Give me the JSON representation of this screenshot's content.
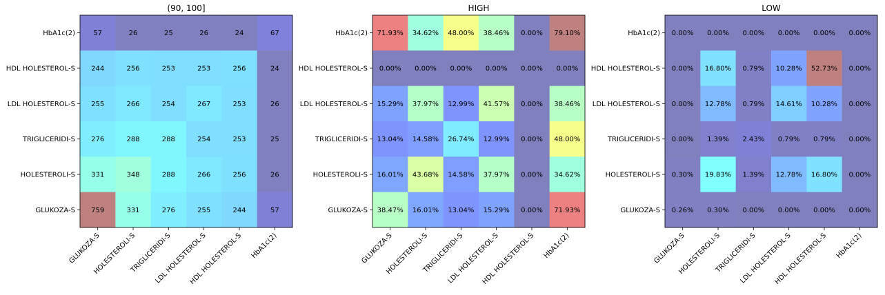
{
  "chart_data": [
    {
      "type": "heatmap",
      "title": "(90, 100]",
      "x_categories": [
        "GLUKOZA-S",
        "HOLESTEROLI-S",
        "TRIGLICERIDI-S",
        "LDL HOLESTEROL-S",
        "HDL HOLESTEROL-S",
        "HbA1c(2)"
      ],
      "y_categories": [
        "HbA1c(2)",
        "HDL HOLESTEROL-S",
        "LDL HOLESTEROL-S",
        "TRIGLICERIDI-S",
        "HOLESTEROLI-S",
        "GLUKOZA-S"
      ],
      "values": [
        [
          57,
          26,
          25,
          26,
          24,
          67
        ],
        [
          244,
          256,
          253,
          253,
          256,
          24
        ],
        [
          255,
          266,
          254,
          267,
          253,
          26
        ],
        [
          276,
          288,
          288,
          254,
          253,
          25
        ],
        [
          331,
          348,
          288,
          266,
          256,
          26
        ],
        [
          759,
          331,
          276,
          255,
          244,
          57
        ]
      ],
      "labels": [
        [
          "57",
          "26",
          "25",
          "26",
          "24",
          "67"
        ],
        [
          "244",
          "256",
          "253",
          "253",
          "256",
          "24"
        ],
        [
          "255",
          "266",
          "254",
          "267",
          "253",
          "26"
        ],
        [
          "276",
          "288",
          "288",
          "254",
          "253",
          "25"
        ],
        [
          "331",
          "348",
          "288",
          "266",
          "256",
          "26"
        ],
        [
          "759",
          "331",
          "276",
          "255",
          "244",
          "57"
        ]
      ],
      "vmin": 24,
      "vmax": 759,
      "colormap": "jet",
      "alpha": 0.5
    },
    {
      "type": "heatmap",
      "title": "HIGH",
      "x_categories": [
        "GLUKOZA-S",
        "HOLESTEROLI-S",
        "TRIGLICERIDI-S",
        "LDL HOLESTEROL-S",
        "HDL HOLESTEROL-S",
        "HbA1c(2)"
      ],
      "y_categories": [
        "HbA1c(2)",
        "HDL HOLESTEROL-S",
        "LDL HOLESTEROL-S",
        "TRIGLICERIDI-S",
        "HOLESTEROLI-S",
        "GLUKOZA-S"
      ],
      "values": [
        [
          71.93,
          34.62,
          48.0,
          38.46,
          0.0,
          79.1
        ],
        [
          0.0,
          0.0,
          0.0,
          0.0,
          0.0,
          0.0
        ],
        [
          15.29,
          37.97,
          12.99,
          41.57,
          0.0,
          38.46
        ],
        [
          13.04,
          14.58,
          26.74,
          12.99,
          0.0,
          48.0
        ],
        [
          16.01,
          43.68,
          14.58,
          37.97,
          0.0,
          34.62
        ],
        [
          38.47,
          16.01,
          13.04,
          15.29,
          0.0,
          71.93
        ]
      ],
      "labels": [
        [
          "71.93%",
          "34.62%",
          "48.00%",
          "38.46%",
          "0.00%",
          "79.10%"
        ],
        [
          "0.00%",
          "0.00%",
          "0.00%",
          "0.00%",
          "0.00%",
          "0.00%"
        ],
        [
          "15.29%",
          "37.97%",
          "12.99%",
          "41.57%",
          "0.00%",
          "38.46%"
        ],
        [
          "13.04%",
          "14.58%",
          "26.74%",
          "12.99%",
          "0.00%",
          "48.00%"
        ],
        [
          "16.01%",
          "43.68%",
          "14.58%",
          "37.97%",
          "0.00%",
          "34.62%"
        ],
        [
          "38.47%",
          "16.01%",
          "13.04%",
          "15.29%",
          "0.00%",
          "71.93%"
        ]
      ],
      "vmin": 0,
      "vmax": 79.1,
      "colormap": "jet",
      "alpha": 0.5
    },
    {
      "type": "heatmap",
      "title": "LOW",
      "x_categories": [
        "GLUKOZA-S",
        "HOLESTEROLI-S",
        "TRIGLICERIDI-S",
        "LDL HOLESTEROL-S",
        "HDL HOLESTEROL-S",
        "HbA1c(2)"
      ],
      "y_categories": [
        "HbA1c(2)",
        "HDL HOLESTEROL-S",
        "LDL HOLESTEROL-S",
        "TRIGLICERIDI-S",
        "HOLESTEROLI-S",
        "GLUKOZA-S"
      ],
      "values": [
        [
          0.0,
          0.0,
          0.0,
          0.0,
          0.0,
          0.0
        ],
        [
          0.0,
          16.8,
          0.79,
          10.28,
          52.73,
          0.0
        ],
        [
          0.0,
          12.78,
          0.79,
          14.61,
          10.28,
          0.0
        ],
        [
          0.0,
          1.39,
          2.43,
          0.79,
          0.79,
          0.0
        ],
        [
          0.3,
          19.83,
          1.39,
          12.78,
          16.8,
          0.0
        ],
        [
          0.26,
          0.3,
          0.0,
          0.0,
          0.0,
          0.0
        ]
      ],
      "labels": [
        [
          "0.00%",
          "0.00%",
          "0.00%",
          "0.00%",
          "0.00%",
          "0.00%"
        ],
        [
          "0.00%",
          "16.80%",
          "0.79%",
          "10.28%",
          "52.73%",
          "0.00%"
        ],
        [
          "0.00%",
          "12.78%",
          "0.79%",
          "14.61%",
          "10.28%",
          "0.00%"
        ],
        [
          "0.00%",
          "1.39%",
          "2.43%",
          "0.79%",
          "0.79%",
          "0.00%"
        ],
        [
          "0.30%",
          "19.83%",
          "1.39%",
          "12.78%",
          "16.80%",
          "0.00%"
        ],
        [
          "0.26%",
          "0.30%",
          "0.00%",
          "0.00%",
          "0.00%",
          "0.00%"
        ]
      ],
      "vmin": 0,
      "vmax": 52.73,
      "colormap": "jet",
      "alpha": 0.5
    }
  ]
}
